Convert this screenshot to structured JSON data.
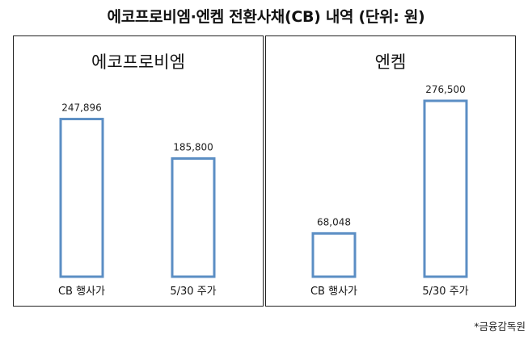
{
  "title": "에코프로비엠·엔켐 전환사채(CB) 내역 (단위: 원)",
  "source": "*금융감독원",
  "chart_data": [
    {
      "type": "bar",
      "title": "에코프로비엠",
      "categories": [
        "CB 행사가",
        "5/30 주가"
      ],
      "values": [
        247896,
        185800
      ],
      "value_labels": [
        "247,896",
        "185,800"
      ],
      "color": "#5b8ec4"
    },
    {
      "type": "bar",
      "title": "엔켐",
      "categories": [
        "CB 행사가",
        "5/30 주가"
      ],
      "values": [
        68048,
        276500
      ],
      "value_labels": [
        "68,048",
        "276,500"
      ],
      "color": "#5b8ec4"
    }
  ]
}
